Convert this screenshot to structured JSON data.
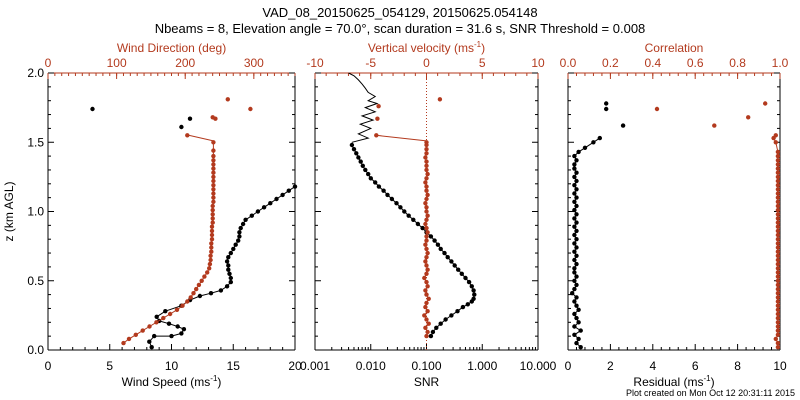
{
  "header": {
    "title": "VAD_08_20150625_054129, 20150625.054148",
    "subtitle": "Nbeams = 8, Elevation angle = 70.0°, scan duration = 31.6 s, SNR Threshold = 0.008"
  },
  "footer": {
    "plot_created": "Plot created on Mon Oct 12 20:31:11 2015"
  },
  "colors": {
    "black": "#000000",
    "red": "#b33a1e"
  },
  "chart_data": [
    {
      "type": "line",
      "panel": "left",
      "ylabel": "z (km AGL)",
      "ylim": [
        0,
        2
      ],
      "yticks": [
        "0.0",
        "0.5",
        "1.0",
        "1.5",
        "2.0"
      ],
      "xlabel_bottom": "Wind Speed (ms",
      "xlabel_bottom_sup": "-1",
      "xlabel_bottom_close": ")",
      "xlim_bottom": [
        0,
        20
      ],
      "xticks_bottom": [
        "0",
        "5",
        "10",
        "15",
        "20"
      ],
      "xlabel_top": "Wind Direction (deg)",
      "xlim_top": [
        0,
        360
      ],
      "xticks_top": [
        "0",
        "100",
        "200",
        "300"
      ],
      "series": [
        {
          "color": "black",
          "axis": "bottom",
          "x": [
            8.4,
            8.2,
            8.6,
            10.0,
            10.8,
            11.0,
            10.5,
            9.8,
            9.0,
            8.8,
            9.5,
            10.8,
            11.5,
            12.3,
            13.2,
            14.0,
            14.5,
            14.8,
            14.8,
            14.7,
            14.6,
            14.6,
            14.5,
            14.6,
            14.8,
            15.0,
            15.2,
            15.4,
            15.5,
            15.5,
            15.6,
            15.8,
            16.0,
            16.5,
            17.0,
            17.5,
            18.0,
            18.5,
            19.0,
            19.5,
            20.0
          ],
          "y": [
            0.02,
            0.06,
            0.1,
            0.1,
            0.12,
            0.15,
            0.17,
            0.19,
            0.21,
            0.24,
            0.28,
            0.32,
            0.36,
            0.39,
            0.41,
            0.43,
            0.46,
            0.49,
            0.52,
            0.55,
            0.58,
            0.61,
            0.64,
            0.67,
            0.7,
            0.73,
            0.76,
            0.79,
            0.82,
            0.85,
            0.88,
            0.91,
            0.94,
            0.97,
            1.0,
            1.03,
            1.06,
            1.09,
            1.12,
            1.15,
            1.18
          ]
        },
        {
          "color": "red",
          "axis": "top",
          "x": [
            110,
            118,
            128,
            138,
            148,
            158,
            168,
            178,
            188,
            196,
            203,
            208,
            212,
            216,
            220,
            224,
            228,
            232,
            235,
            236,
            237,
            237,
            238,
            238,
            238,
            239,
            239,
            239,
            239,
            240,
            240,
            240,
            240,
            240,
            241,
            241,
            241,
            241,
            241,
            241,
            241,
            241,
            241,
            241,
            241,
            241,
            241,
            241
          ],
          "y": [
            0.05,
            0.08,
            0.11,
            0.14,
            0.17,
            0.2,
            0.23,
            0.26,
            0.29,
            0.32,
            0.35,
            0.38,
            0.41,
            0.44,
            0.47,
            0.5,
            0.53,
            0.56,
            0.59,
            0.62,
            0.65,
            0.68,
            0.71,
            0.74,
            0.77,
            0.8,
            0.83,
            0.86,
            0.89,
            0.92,
            0.95,
            0.98,
            1.01,
            1.04,
            1.07,
            1.1,
            1.13,
            1.16,
            1.19,
            1.22,
            1.25,
            1.28,
            1.31,
            1.34,
            1.37,
            1.4,
            1.44,
            1.5
          ]
        },
        {
          "color": "red",
          "axis": "top",
          "style": "line",
          "x": [
            205,
            241
          ],
          "y": [
            1.55,
            1.51
          ]
        },
        {
          "color": "black",
          "axis": "bottom",
          "style": "points",
          "x": [
            3.6,
            10.8,
            11.5
          ],
          "y": [
            1.74,
            1.61,
            1.67
          ]
        },
        {
          "color": "red",
          "axis": "top",
          "style": "points",
          "x": [
            203,
            240,
            244,
            262,
            295
          ],
          "y": [
            1.55,
            1.68,
            1.67,
            1.81,
            1.74
          ]
        }
      ]
    },
    {
      "type": "line",
      "panel": "middle",
      "ylim": [
        0,
        2
      ],
      "xlabel_bottom": "SNR",
      "xscale_bottom": "log",
      "xlim_bottom": [
        0.001,
        10
      ],
      "xticks_bottom": [
        "0.001",
        "0.010",
        "0.100",
        "1.000",
        "10.000"
      ],
      "xlabel_top": "Vertical velocity (ms",
      "xlabel_top_sup": "-1",
      "xlabel_top_close": ")",
      "xlim_top": [
        -10,
        10
      ],
      "xticks_top": [
        "-10",
        "-5",
        "0",
        "5",
        "10"
      ],
      "zero_line_top": 0,
      "series": [
        {
          "color": "black",
          "axis": "bottom",
          "x": [
            0.12,
            0.13,
            0.15,
            0.18,
            0.22,
            0.28,
            0.36,
            0.45,
            0.55,
            0.65,
            0.7,
            0.72,
            0.7,
            0.65,
            0.58,
            0.5,
            0.43,
            0.37,
            0.32,
            0.28,
            0.24,
            0.21,
            0.18,
            0.16,
            0.14,
            0.12,
            0.1,
            0.085,
            0.07,
            0.058,
            0.048,
            0.04,
            0.034,
            0.029,
            0.024,
            0.02,
            0.017,
            0.014,
            0.012,
            0.01,
            0.009,
            0.008,
            0.0072,
            0.0066,
            0.006,
            0.0055,
            0.005,
            0.0046
          ],
          "y": [
            0.1,
            0.13,
            0.16,
            0.19,
            0.22,
            0.25,
            0.28,
            0.31,
            0.33,
            0.35,
            0.37,
            0.4,
            0.43,
            0.46,
            0.49,
            0.52,
            0.55,
            0.58,
            0.61,
            0.64,
            0.67,
            0.7,
            0.73,
            0.76,
            0.79,
            0.82,
            0.85,
            0.88,
            0.91,
            0.94,
            0.97,
            1.0,
            1.03,
            1.06,
            1.09,
            1.12,
            1.15,
            1.18,
            1.21,
            1.24,
            1.27,
            1.3,
            1.33,
            1.36,
            1.39,
            1.42,
            1.45,
            1.48
          ]
        },
        {
          "color": "black",
          "axis": "bottom",
          "style": "line",
          "x": [
            0.0046,
            0.009,
            0.006,
            0.01,
            0.0065,
            0.011,
            0.007,
            0.012,
            0.008,
            0.013,
            0.009,
            0.012,
            0.009,
            0.008,
            0.007,
            0.006,
            0.005,
            0.004
          ],
          "y": [
            1.5,
            1.53,
            1.56,
            1.6,
            1.63,
            1.66,
            1.69,
            1.72,
            1.75,
            1.78,
            1.8,
            1.83,
            1.86,
            1.89,
            1.92,
            1.95,
            1.98,
            2.0
          ]
        },
        {
          "color": "red",
          "axis": "top",
          "x": [
            0.0,
            0.1,
            -0.1,
            0.2,
            0.0,
            -0.2,
            0.1,
            -0.1,
            0.0,
            0.2,
            0.0,
            -0.1,
            0.1,
            0.0,
            -0.2,
            0.0,
            0.1,
            0.0,
            -0.1,
            0.0,
            0.1,
            0.0,
            -0.1,
            0.0,
            0.0,
            0.1,
            0.0,
            -0.1,
            0.0,
            0.1,
            0.0,
            0.0,
            -0.1,
            0.0,
            0.1,
            0.0,
            0.0,
            -0.1,
            0.0,
            0.1,
            0.0,
            0.0,
            0.0,
            -0.1,
            0.0,
            0.0,
            0.0,
            0.0
          ],
          "y": [
            0.1,
            0.13,
            0.16,
            0.19,
            0.22,
            0.25,
            0.28,
            0.31,
            0.34,
            0.37,
            0.4,
            0.43,
            0.46,
            0.49,
            0.52,
            0.55,
            0.58,
            0.61,
            0.64,
            0.67,
            0.7,
            0.73,
            0.76,
            0.79,
            0.82,
            0.85,
            0.88,
            0.91,
            0.94,
            0.97,
            1.0,
            1.03,
            1.06,
            1.09,
            1.12,
            1.15,
            1.18,
            1.21,
            1.24,
            1.27,
            1.3,
            1.33,
            1.36,
            1.39,
            1.42,
            1.45,
            1.48,
            1.5
          ]
        },
        {
          "color": "red",
          "axis": "top",
          "style": "line",
          "x": [
            -4.5,
            0.0
          ],
          "y": [
            1.55,
            1.51
          ]
        },
        {
          "color": "red",
          "axis": "top",
          "style": "points",
          "x": [
            -4.5,
            -4.4,
            -4.3,
            1.2
          ],
          "y": [
            1.55,
            1.67,
            1.76,
            1.81
          ]
        }
      ]
    },
    {
      "type": "line",
      "panel": "right",
      "ylim": [
        0,
        2
      ],
      "xlabel_bottom": "Residual (ms",
      "xlabel_bottom_sup": "-1",
      "xlabel_bottom_close": ")",
      "xlim_bottom": [
        0,
        10
      ],
      "xticks_bottom": [
        "0",
        "2",
        "4",
        "6",
        "8",
        "10"
      ],
      "xlabel_top": "Correlation",
      "xlim_top": [
        0.0,
        1.0
      ],
      "xticks_top": [
        "0.0",
        "0.2",
        "0.4",
        "0.6",
        "0.8",
        "1.0"
      ],
      "series": [
        {
          "color": "black",
          "axis": "bottom",
          "x": [
            0.6,
            0.4,
            0.5,
            0.3,
            0.6,
            0.3,
            0.5,
            0.4,
            0.3,
            0.5,
            0.4,
            0.3,
            0.4,
            0.2,
            0.3,
            0.4,
            0.3,
            0.4,
            0.3,
            0.3,
            0.4,
            0.3,
            0.4,
            0.3,
            0.4,
            0.3,
            0.4,
            0.3,
            0.4,
            0.3,
            0.4,
            0.3,
            0.4,
            0.3,
            0.4,
            0.3,
            0.4,
            0.3,
            0.4,
            0.3,
            0.4,
            0.3,
            0.4,
            0.3,
            0.3,
            0.4,
            0.3,
            0.5,
            0.8,
            1.2,
            1.5
          ],
          "y": [
            0.02,
            0.05,
            0.08,
            0.11,
            0.14,
            0.17,
            0.2,
            0.23,
            0.26,
            0.29,
            0.32,
            0.35,
            0.38,
            0.41,
            0.44,
            0.47,
            0.5,
            0.53,
            0.56,
            0.59,
            0.62,
            0.65,
            0.68,
            0.71,
            0.74,
            0.77,
            0.8,
            0.83,
            0.86,
            0.89,
            0.92,
            0.95,
            0.98,
            1.01,
            1.04,
            1.07,
            1.1,
            1.13,
            1.16,
            1.19,
            1.22,
            1.25,
            1.28,
            1.31,
            1.34,
            1.37,
            1.4,
            1.43,
            1.46,
            1.5,
            1.53
          ]
        },
        {
          "color": "red",
          "axis": "top",
          "x": [
            0.99,
            0.99,
            0.98,
            0.99,
            0.99,
            0.99,
            0.99,
            0.99,
            0.99,
            0.99,
            0.99,
            0.99,
            0.99,
            0.99,
            0.99,
            0.99,
            0.99,
            0.99,
            0.99,
            0.99,
            0.99,
            0.99,
            0.99,
            0.99,
            0.99,
            0.99,
            0.99,
            0.99,
            0.99,
            0.99,
            0.99,
            0.99,
            0.99,
            0.99,
            0.99,
            0.99,
            0.99,
            0.99,
            0.99,
            0.99,
            0.99,
            0.99,
            0.99,
            0.99,
            0.99,
            0.99,
            0.99,
            0.99,
            0.98,
            0.97
          ],
          "y": [
            0.02,
            0.05,
            0.08,
            0.11,
            0.14,
            0.17,
            0.2,
            0.23,
            0.26,
            0.29,
            0.32,
            0.35,
            0.38,
            0.41,
            0.44,
            0.47,
            0.5,
            0.53,
            0.56,
            0.59,
            0.62,
            0.65,
            0.68,
            0.71,
            0.74,
            0.77,
            0.8,
            0.83,
            0.86,
            0.89,
            0.92,
            0.95,
            0.98,
            1.01,
            1.04,
            1.07,
            1.1,
            1.13,
            1.16,
            1.19,
            1.22,
            1.25,
            1.28,
            1.31,
            1.34,
            1.37,
            1.4,
            1.43,
            1.5,
            1.53
          ]
        },
        {
          "color": "black",
          "axis": "bottom",
          "style": "points",
          "x": [
            1.8,
            1.8,
            2.6
          ],
          "y": [
            1.78,
            1.74,
            1.62
          ]
        },
        {
          "color": "red",
          "axis": "top",
          "style": "points",
          "x": [
            0.42,
            0.69,
            0.85,
            0.93,
            0.98
          ],
          "y": [
            1.74,
            1.62,
            1.68,
            1.78,
            1.55
          ]
        }
      ]
    }
  ]
}
